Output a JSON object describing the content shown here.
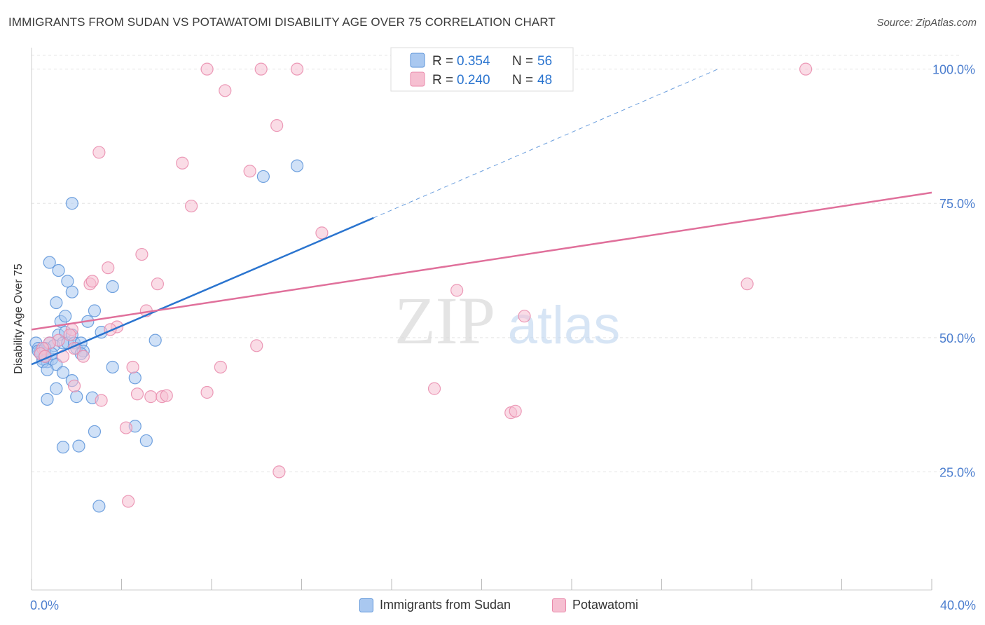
{
  "title": "IMMIGRANTS FROM SUDAN VS POTAWATOMI DISABILITY AGE OVER 75 CORRELATION CHART",
  "source": "Source: ZipAtlas.com",
  "watermark": {
    "zip": "ZIP",
    "atlas": "atlas"
  },
  "colors": {
    "blue_fill": "#a9c8f0",
    "blue_stroke": "#5b93d9",
    "blue_line": "#2a74cf",
    "pink_fill": "#f6bfd1",
    "pink_stroke": "#e98aab",
    "pink_line": "#e0709b",
    "axis_text": "#4d7fcf",
    "grid": "#e4e4e4"
  },
  "legend": {
    "rows": [
      {
        "r_label": "R = ",
        "r_value": "0.354",
        "n_label": "N = ",
        "n_value": "56"
      },
      {
        "r_label": "R = ",
        "r_value": "0.240",
        "n_label": "N = ",
        "n_value": "48"
      }
    ]
  },
  "chart_data": {
    "type": "scatter",
    "title": "IMMIGRANTS FROM SUDAN VS POTAWATOMI DISABILITY AGE OVER 75 CORRELATION CHART",
    "xlabel": "",
    "ylabel": "Disability Age Over 75",
    "xlim": [
      0,
      40
    ],
    "ylim": [
      3,
      104
    ],
    "x_tick_labels": [
      "0.0%",
      "40.0%"
    ],
    "y_ticks": [
      25,
      50,
      75,
      100
    ],
    "y_tick_labels": [
      "25.0%",
      "50.0%",
      "75.0%",
      "100.0%"
    ],
    "grid": true,
    "legend_position": "top-center",
    "series": [
      {
        "name": "Immigrants from Sudan",
        "color": "#a9c8f0",
        "trend": {
          "x": [
            0,
            15.2
          ],
          "y": [
            45,
            72.3
          ],
          "dashed_to": [
            30.5,
            100
          ]
        },
        "points": [
          [
            0.2,
            49
          ],
          [
            0.3,
            48
          ],
          [
            0.4,
            47.5
          ],
          [
            0.5,
            46
          ],
          [
            0.6,
            47
          ],
          [
            0.7,
            45.5
          ],
          [
            0.8,
            49
          ],
          [
            0.9,
            46
          ],
          [
            1,
            48.5
          ],
          [
            1.1,
            45
          ],
          [
            0.5,
            45.5
          ],
          [
            0.4,
            47
          ],
          [
            0.3,
            47.5
          ],
          [
            0.6,
            48
          ],
          [
            1.2,
            50.5
          ],
          [
            1.3,
            53
          ],
          [
            1.5,
            51
          ],
          [
            1.4,
            49
          ],
          [
            1.6,
            49
          ],
          [
            1.8,
            50.5
          ],
          [
            1.9,
            49
          ],
          [
            2.0,
            48
          ],
          [
            2.2,
            49
          ],
          [
            2.3,
            47.5
          ],
          [
            2.5,
            53
          ],
          [
            2.8,
            55
          ],
          [
            3.1,
            51
          ],
          [
            0.8,
            64
          ],
          [
            1.2,
            62.5
          ],
          [
            1.6,
            60.5
          ],
          [
            1.8,
            58.5
          ],
          [
            1.1,
            56.5
          ],
          [
            1.5,
            54
          ],
          [
            3.6,
            59.5
          ],
          [
            1.8,
            75
          ],
          [
            10.3,
            80
          ],
          [
            11.8,
            82
          ],
          [
            0.7,
            44
          ],
          [
            1.4,
            43.5
          ],
          [
            1.8,
            42
          ],
          [
            2.0,
            39
          ],
          [
            1.1,
            40.5
          ],
          [
            0.7,
            38.5
          ],
          [
            2.7,
            38.8
          ],
          [
            3.6,
            44.5
          ],
          [
            4.6,
            42.5
          ],
          [
            5.5,
            49.5
          ],
          [
            2.8,
            32.5
          ],
          [
            4.6,
            33.5
          ],
          [
            5.1,
            30.8
          ],
          [
            1.4,
            29.6
          ],
          [
            2.1,
            29.8
          ],
          [
            3.0,
            18.6
          ],
          [
            0.6,
            46.5
          ],
          [
            0.9,
            47
          ],
          [
            2.2,
            47
          ]
        ]
      },
      {
        "name": "Potawatomi",
        "color": "#f6bfd1",
        "trend": {
          "x": [
            0,
            40
          ],
          "y": [
            51.5,
            77
          ]
        },
        "points": [
          [
            7.8,
            100
          ],
          [
            10.2,
            100
          ],
          [
            11.8,
            100
          ],
          [
            34.4,
            100
          ],
          [
            8.6,
            96
          ],
          [
            10.9,
            89.5
          ],
          [
            3.0,
            84.5
          ],
          [
            6.7,
            82.5
          ],
          [
            9.7,
            81
          ],
          [
            7.1,
            74.5
          ],
          [
            12.9,
            69.5
          ],
          [
            4.9,
            65.5
          ],
          [
            3.4,
            63
          ],
          [
            2.6,
            60
          ],
          [
            2.7,
            60.5
          ],
          [
            5.6,
            60
          ],
          [
            5.1,
            55
          ],
          [
            3.8,
            52
          ],
          [
            3.5,
            51.5
          ],
          [
            1.8,
            51.5
          ],
          [
            1.7,
            50.5
          ],
          [
            1.2,
            49.5
          ],
          [
            0.8,
            49
          ],
          [
            1.9,
            48
          ],
          [
            2.3,
            46.5
          ],
          [
            1.4,
            46.5
          ],
          [
            10.0,
            48.5
          ],
          [
            8.4,
            44.5
          ],
          [
            4.5,
            44.5
          ],
          [
            4.7,
            39.5
          ],
          [
            5.3,
            39
          ],
          [
            5.8,
            39
          ],
          [
            6.0,
            39.2
          ],
          [
            7.8,
            39.8
          ],
          [
            3.1,
            38.3
          ],
          [
            1.9,
            41
          ],
          [
            17.9,
            40.5
          ],
          [
            18.9,
            58.8
          ],
          [
            21.9,
            54
          ],
          [
            21.3,
            36
          ],
          [
            21.5,
            36.3
          ],
          [
            31.8,
            60
          ],
          [
            4.2,
            33.2
          ],
          [
            4.3,
            19.5
          ],
          [
            11.0,
            25
          ],
          [
            0.5,
            48
          ],
          [
            0.4,
            47
          ],
          [
            0.6,
            46.5
          ]
        ]
      }
    ]
  }
}
